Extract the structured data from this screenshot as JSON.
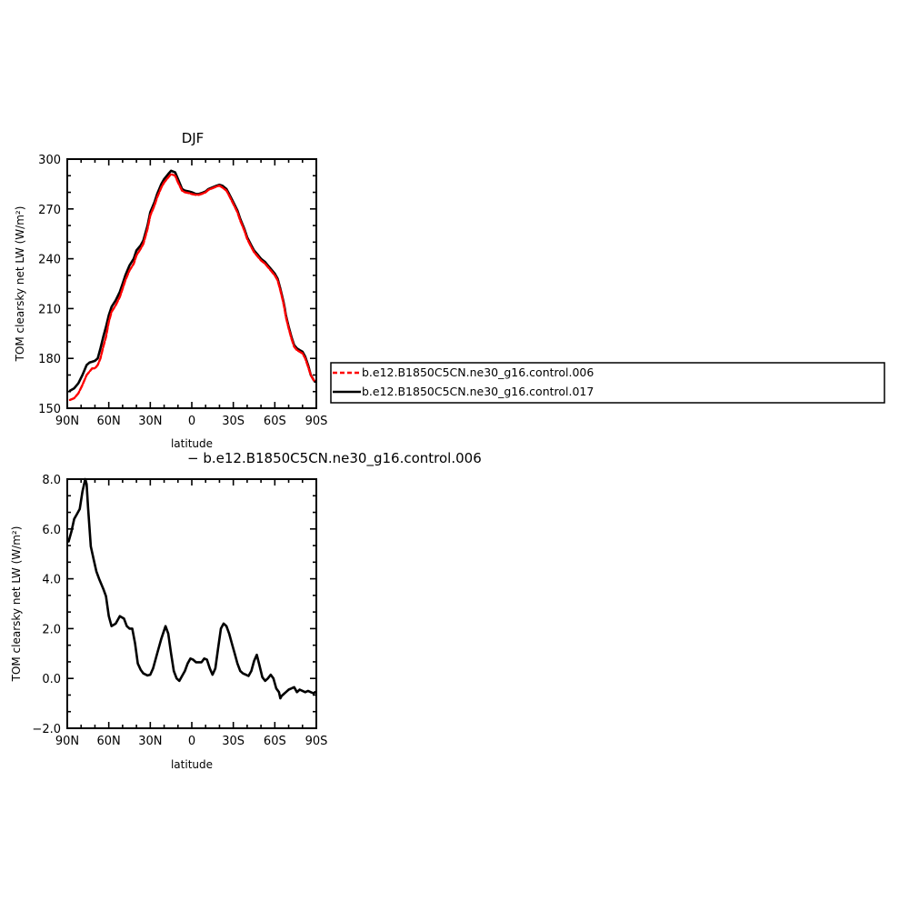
{
  "chart_data": [
    {
      "type": "line",
      "title": "DJF",
      "xlabel": "latitude",
      "ylabel": "TOM clearsky net LW (W/m²)",
      "xlim": [
        90,
        -90
      ],
      "ylim": [
        150,
        300
      ],
      "xticks": [
        90,
        60,
        30,
        0,
        -30,
        -60,
        -90
      ],
      "xtick_labels": [
        "90N",
        "60N",
        "30N",
        "0",
        "30S",
        "60S",
        "90S"
      ],
      "yticks": [
        150,
        180,
        210,
        240,
        270,
        300
      ],
      "ytick_labels": [
        "150",
        "180",
        "210",
        "240",
        "270",
        "300"
      ],
      "legend_position": "right",
      "series": [
        {
          "name": "b.e12.B1850C5CN.ne30_g16.control.006",
          "color": "#ff0000",
          "dashed": true,
          "x": [
            88,
            85,
            82,
            79,
            76,
            74,
            72,
            70,
            68,
            66,
            64,
            62,
            60,
            58,
            55,
            52,
            50,
            48,
            45,
            42,
            40,
            37,
            35,
            32,
            30,
            27,
            25,
            22,
            20,
            17,
            15,
            12,
            10,
            7,
            5,
            2,
            0,
            -3,
            -5,
            -7,
            -10,
            -12,
            -15,
            -18,
            -20,
            -22,
            -25,
            -27,
            -30,
            -33,
            -35,
            -38,
            -40,
            -43,
            -45,
            -48,
            -50,
            -53,
            -55,
            -57,
            -60,
            -62,
            -64,
            -66,
            -67,
            -68,
            -70,
            -72,
            -74,
            -76,
            -78,
            -80,
            -82,
            -84,
            -86,
            -88,
            -89
          ],
          "values": [
            155,
            156,
            159,
            164,
            170,
            172,
            174,
            174,
            176,
            180,
            187,
            193,
            202,
            208,
            212,
            217,
            222,
            227,
            233,
            237,
            242,
            246,
            249,
            258,
            266,
            272,
            277,
            283,
            286,
            289,
            291,
            290,
            286,
            281,
            280,
            279.5,
            279,
            278.5,
            278.5,
            279,
            280,
            281.5,
            282.5,
            283.5,
            284,
            283,
            281,
            278,
            273,
            268,
            263,
            257,
            252,
            247,
            244,
            241,
            239,
            237,
            235,
            233,
            230,
            227,
            221,
            214,
            210,
            205,
            198,
            192,
            187,
            185,
            184,
            183,
            180,
            175,
            170,
            167,
            166
          ]
        },
        {
          "name": "b.e12.B1850C5CN.ne30_g16.control.017",
          "color": "#000000",
          "dashed": false,
          "x": [
            88,
            85,
            82,
            79,
            76,
            74,
            72,
            70,
            68,
            66,
            64,
            62,
            60,
            58,
            55,
            52,
            50,
            48,
            45,
            42,
            40,
            37,
            35,
            32,
            30,
            27,
            25,
            22,
            20,
            17,
            15,
            12,
            10,
            7,
            5,
            2,
            0,
            -3,
            -5,
            -7,
            -10,
            -12,
            -15,
            -18,
            -20,
            -22,
            -25,
            -27,
            -30,
            -33,
            -35,
            -38,
            -40,
            -43,
            -45,
            -48,
            -50,
            -53,
            -55,
            -57,
            -60,
            -62,
            -64,
            -66,
            -67,
            -68,
            -70,
            -72,
            -74,
            -76,
            -78,
            -80,
            -82,
            -84,
            -86,
            -88,
            -89
          ],
          "values": [
            160.5,
            162,
            165,
            170,
            176,
            177.5,
            178,
            178.5,
            180,
            186,
            193,
            199,
            206,
            211,
            215,
            220,
            225,
            230,
            236,
            240,
            245,
            248,
            251,
            260,
            268,
            274,
            279,
            285,
            288,
            291,
            293,
            292,
            288,
            282,
            281,
            280.5,
            280,
            279,
            279,
            279.5,
            280.5,
            282,
            283,
            284,
            284.5,
            284,
            282,
            279,
            274,
            269,
            264,
            258,
            253,
            248,
            245,
            242,
            240,
            238,
            236,
            234,
            231,
            228,
            222,
            215,
            211,
            206,
            199,
            193,
            188,
            186,
            185,
            184,
            181,
            176,
            170,
            167,
            166
          ]
        }
      ]
    },
    {
      "type": "line",
      "title": "− b.e12.B1850C5CN.ne30_g16.control.006",
      "xlabel": "latitude",
      "ylabel": "TOM clearsky net LW (W/m²)",
      "xlim": [
        90,
        -90
      ],
      "ylim": [
        -2.0,
        8.0
      ],
      "xticks": [
        90,
        60,
        30,
        0,
        -30,
        -60,
        -90
      ],
      "xtick_labels": [
        "90N",
        "60N",
        "30N",
        "0",
        "30S",
        "60S",
        "90S"
      ],
      "yticks": [
        -2.0,
        0.0,
        2.0,
        4.0,
        6.0,
        8.0
      ],
      "ytick_labels": [
        "−2.0",
        "0.0",
        "2.0",
        "4.0",
        "6.0",
        "8.0"
      ],
      "series": [
        {
          "name": "",
          "color": "#000000",
          "dashed": false,
          "x": [
            89,
            87,
            85,
            83,
            81,
            79,
            77,
            76,
            75,
            73,
            71,
            69,
            67,
            64,
            62,
            60,
            58,
            55,
            52,
            49,
            47,
            45,
            43,
            41,
            39,
            37,
            35,
            32,
            30,
            28,
            25,
            22,
            19,
            17,
            15,
            13,
            11,
            9,
            7,
            5,
            3,
            1,
            -1,
            -3,
            -5,
            -7,
            -9,
            -11,
            -13,
            -15,
            -17,
            -19,
            -21,
            -23,
            -25,
            -27,
            -29,
            -31,
            -33,
            -35,
            -37,
            -39,
            -41,
            -43,
            -45,
            -47,
            -49,
            -51,
            -53,
            -55,
            -57,
            -59,
            -61,
            -63,
            -64,
            -65,
            -66,
            -67,
            -68,
            -70,
            -72,
            -74,
            -76,
            -78,
            -80,
            -82,
            -84,
            -86,
            -88,
            -89
          ],
          "values": [
            5.5,
            5.9,
            6.4,
            6.6,
            6.8,
            7.5,
            8.0,
            7.8,
            6.9,
            5.3,
            4.8,
            4.3,
            4.0,
            3.6,
            3.3,
            2.5,
            2.1,
            2.2,
            2.5,
            2.4,
            2.1,
            2.0,
            2.0,
            1.4,
            0.6,
            0.35,
            0.2,
            0.12,
            0.15,
            0.4,
            1.0,
            1.6,
            2.1,
            1.8,
            1.0,
            0.3,
            0.0,
            -0.1,
            0.1,
            0.3,
            0.6,
            0.8,
            0.75,
            0.65,
            0.65,
            0.65,
            0.8,
            0.75,
            0.4,
            0.15,
            0.4,
            1.2,
            2.0,
            2.2,
            2.1,
            1.8,
            1.4,
            1.0,
            0.6,
            0.3,
            0.2,
            0.15,
            0.1,
            0.3,
            0.7,
            0.95,
            0.5,
            0.05,
            -0.1,
            0.0,
            0.15,
            0.0,
            -0.4,
            -0.55,
            -0.8,
            -0.7,
            -0.65,
            -0.6,
            -0.55,
            -0.45,
            -0.4,
            -0.35,
            -0.55,
            -0.45,
            -0.5,
            -0.55,
            -0.5,
            -0.55,
            -0.6,
            -0.55
          ]
        }
      ]
    }
  ]
}
